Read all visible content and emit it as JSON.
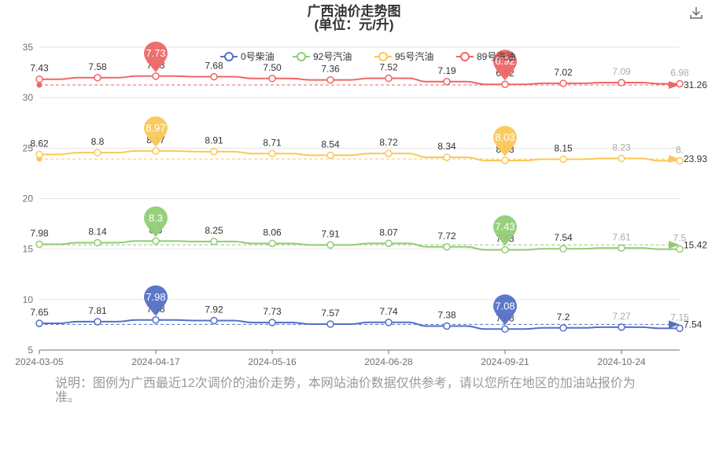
{
  "title": "广西油价走势图",
  "subtitle": "(单位：元/升)",
  "note": "说明：图例为广西最近12次调价的油价走势，本网站油价数据仅供参考，请以您所在地区的加油站报价为准。",
  "download_icon": "download-icon",
  "chart_data": {
    "type": "line",
    "x": [
      "2024-03-05",
      "2024-03-26",
      "2024-04-17",
      "2024-04-30",
      "2024-05-16",
      "2024-05-30",
      "2024-06-28",
      "2024-07-24",
      "2024-09-21",
      "2024-10-10",
      "2024-10-24",
      "2024-11-07"
    ],
    "x_tick_labels": [
      "2024-03-05",
      "2024-04-17",
      "2024-05-16",
      "2024-06-28",
      "2024-09-21",
      "2024-10-24"
    ],
    "ylim": [
      5,
      35
    ],
    "y_ticks": [
      5,
      10,
      15,
      20,
      25,
      30,
      35
    ],
    "grid": true,
    "legend": "top-center",
    "series": [
      {
        "name": "0号柴油",
        "color": "#5470c6",
        "offset": 0,
        "values": [
          7.65,
          7.81,
          7.98,
          7.92,
          7.73,
          7.57,
          7.74,
          7.38,
          7.08,
          7.2,
          7.27,
          7.15
        ],
        "labels": [
          "7.65",
          "7.81",
          "7.98",
          "7.92",
          "7.73",
          "7.57",
          "7.74",
          "7.38",
          "7.08",
          "7.2",
          "7.27",
          "7.15"
        ],
        "max": {
          "index": 2,
          "label": "7.98"
        },
        "min": {
          "index": 8,
          "label": "7.08"
        },
        "average": 7.54,
        "average_label": "7.54"
      },
      {
        "name": "92号汽油",
        "color": "#91cc75",
        "offset": 7.5,
        "values": [
          7.98,
          8.14,
          8.3,
          8.25,
          8.06,
          7.91,
          8.07,
          7.72,
          7.43,
          7.54,
          7.61,
          7.5
        ],
        "labels": [
          "7.98",
          "8.14",
          "8.3",
          "8.25",
          "8.06",
          "7.91",
          "8.07",
          "7.72",
          "7.43",
          "7.54",
          "7.61",
          "7.5"
        ],
        "max": {
          "index": 2,
          "label": "8.3"
        },
        "min": {
          "index": 8,
          "label": "7.43"
        },
        "average": 15.42,
        "average_label": "15.42"
      },
      {
        "name": "95号汽油",
        "color": "#fac858",
        "offset": 15.75,
        "values": [
          8.62,
          8.8,
          8.97,
          8.91,
          8.71,
          8.54,
          8.72,
          8.34,
          8.03,
          8.15,
          8.23,
          8.0
        ],
        "labels": [
          "8.62",
          "8.8",
          "8.97",
          "8.91",
          "8.71",
          "8.54",
          "8.72",
          "8.34",
          "8.03",
          "8.15",
          "8.23",
          "8."
        ],
        "max": {
          "index": 2,
          "label": "8.97"
        },
        "min": {
          "index": 8,
          "label": "8.03"
        },
        "average": 23.93,
        "average_label": "23.93"
      },
      {
        "name": "89号汽油",
        "color": "#ee6666",
        "offset": 24.4,
        "values": [
          7.43,
          7.58,
          7.73,
          7.68,
          7.5,
          7.36,
          7.52,
          7.19,
          6.92,
          7.02,
          7.09,
          6.98
        ],
        "labels": [
          "7.43",
          "7.58",
          "7.73",
          "7.68",
          "7.50",
          "7.36",
          "7.52",
          "7.19",
          "6.92",
          "7.02",
          "7.09",
          "6.98"
        ],
        "max": {
          "index": 2,
          "label": "7.73"
        },
        "min": {
          "index": 8,
          "label": "6.92"
        },
        "average": 31.26,
        "average_label": "31.26"
      }
    ]
  }
}
